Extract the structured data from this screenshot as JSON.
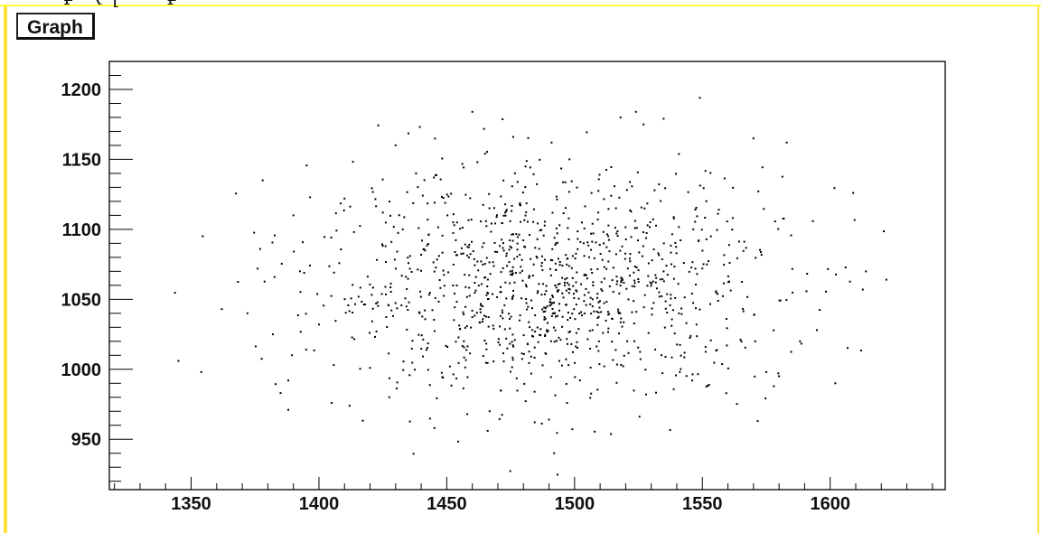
{
  "window": {
    "title": "Graph"
  },
  "top_glyphs": "₽  ₹ [      ₽",
  "colors": {
    "frame": "#ffe03a",
    "axes": "#000000",
    "marker": "#000000",
    "background": "#ffffff"
  },
  "chart_data": {
    "type": "scatter",
    "title": "Graph",
    "xlabel": "",
    "ylabel": "",
    "xlim": [
      1318,
      1645
    ],
    "ylim": [
      914,
      1220
    ],
    "xticks": [
      1350,
      1400,
      1450,
      1500,
      1550,
      1600
    ],
    "yticks": [
      950,
      1000,
      1050,
      1100,
      1150,
      1200
    ],
    "x_tick_labels": [
      "1350",
      "1400",
      "1450",
      "1500",
      "1550",
      "1600"
    ],
    "y_tick_labels": [
      "950",
      "1000",
      "1050",
      "1100",
      "1150",
      "1200"
    ],
    "grid": false,
    "legend": "none",
    "series": [
      {
        "marker": "dot",
        "distribution": "approx. 2D normal cloud, ~1200 points",
        "x_mean": 1490,
        "x_std": 45,
        "y_mean": 1060,
        "y_std": 40,
        "points": [
          [
            1345,
            1006
          ],
          [
            1354,
            998
          ],
          [
            1362,
            1043
          ],
          [
            1372,
            1040
          ],
          [
            1378,
            1135
          ],
          [
            1377,
            1086
          ],
          [
            1376,
            1072
          ],
          [
            1382,
            1025
          ],
          [
            1385,
            983
          ],
          [
            1388,
            971
          ],
          [
            1390,
            1110
          ],
          [
            1388,
            992
          ],
          [
            1395,
            1014
          ],
          [
            1400,
            1032
          ],
          [
            1410,
            1122
          ],
          [
            1420,
            1001
          ],
          [
            1425,
            1112
          ],
          [
            1430,
            1160
          ],
          [
            1438,
            1140
          ],
          [
            1460,
            1184
          ],
          [
            1462,
            1148
          ],
          [
            1465,
            1154
          ],
          [
            1476,
            1166
          ],
          [
            1491,
            1162
          ],
          [
            1498,
            1150
          ],
          [
            1518,
            1180
          ],
          [
            1524,
            1184
          ],
          [
            1527,
            1175
          ],
          [
            1549,
            1194
          ],
          [
            1570,
            1165
          ],
          [
            1583,
            1162
          ],
          [
            1609,
            1126
          ],
          [
            1622,
            1064
          ],
          [
            1614,
            1070
          ],
          [
            1602,
            990
          ],
          [
            1580,
            995
          ],
          [
            1575,
            998
          ],
          [
            1458,
            968
          ],
          [
            1466,
            956
          ],
          [
            1490,
            964
          ],
          [
            1492,
            940
          ],
          [
            1528,
            982
          ],
          [
            1546,
            992
          ],
          [
            1412,
            974
          ],
          [
            1405,
            976
          ]
        ]
      }
    ]
  }
}
